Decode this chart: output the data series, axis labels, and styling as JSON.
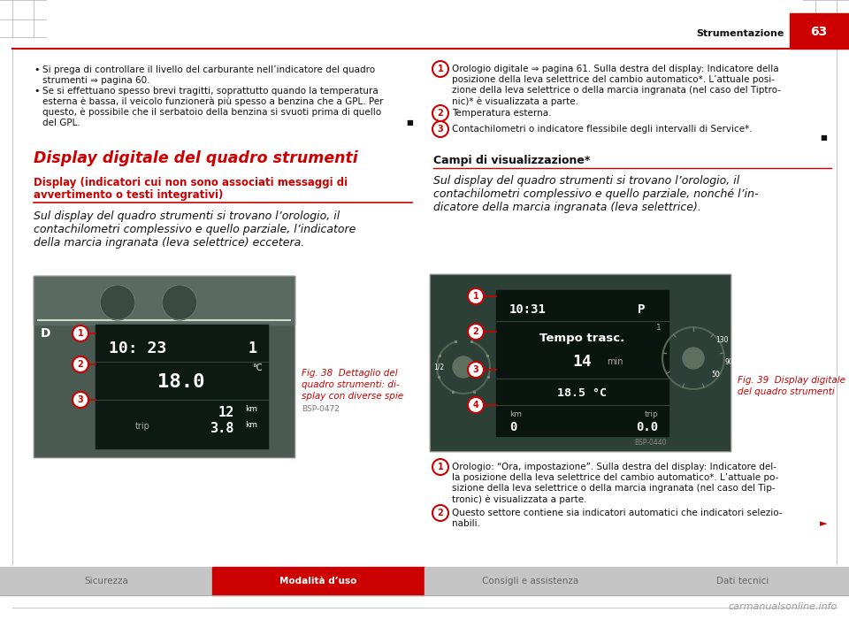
{
  "page_bg": "#ffffff",
  "header_line_color": "#cc0000",
  "header_text": "Strumentazione",
  "header_page_num": "63",
  "header_page_bg": "#cc0000",
  "header_page_text_color": "#ffffff",
  "footer_tabs": [
    "Sicurezza",
    "Modalità d’uso",
    "Consigli e assistenza",
    "Dati tecnici"
  ],
  "section_title_left": "Display digitale del quadro strumenti",
  "section_title_color": "#cc0000",
  "subsection_title_line1": "Display (indicatori cui non sono associati messaggi di",
  "subsection_title_line2": "avvertimento o testi integrativi)",
  "subsection_title_color": "#cc0000",
  "italic_text_left_lines": [
    "Sul display del quadro strumenti si trovano l’orologio, il",
    "contachilometri complessivo e quello parziale, l’indicatore",
    "della marcia ingranata (leva selettrice) eccetera."
  ],
  "fig38_caption_lines": [
    "Fig. 38  Dettaglio del",
    "quadro strumenti: di-",
    "splay con diverse spie"
  ],
  "fig38_code": "BSP-0472",
  "section_title_right": "Campi di visualizzazione*",
  "italic_text_right_lines": [
    "Sul display del quadro strumenti si trovano l’orologio, il",
    "contachilometri complessivo e quello parziale, nonché l’in-",
    "dicatore della marcia ingranata (leva selettrice)."
  ],
  "fig39_caption_lines": [
    "Fig. 39  Display digitale",
    "del quadro strumenti"
  ],
  "fig39_code": "BSP-0440",
  "small_black_square": "■",
  "arrow_right": "►"
}
